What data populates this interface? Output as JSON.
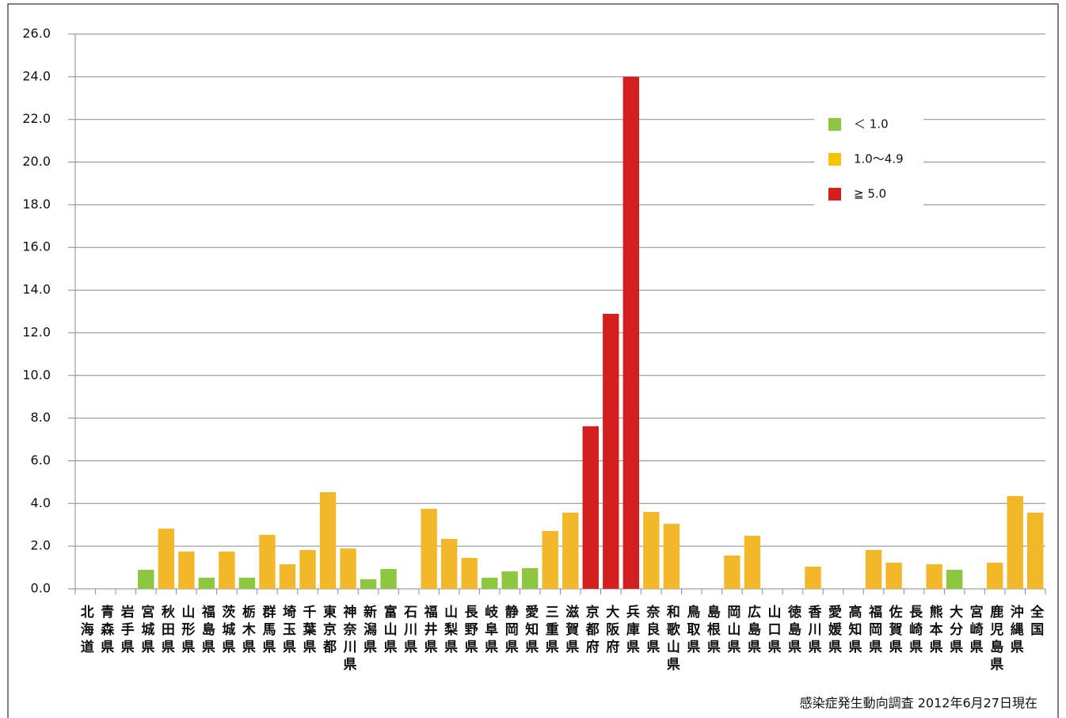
{
  "chart_data": {
    "type": "bar",
    "categories": [
      "北海道",
      "青森県",
      "岩手県",
      "宮城県",
      "秋田県",
      "山形県",
      "福島県",
      "茨城県",
      "栃木県",
      "群馬県",
      "埼玉県",
      "千葉県",
      "東京都",
      "神奈川県",
      "新潟県",
      "富山県",
      "石川県",
      "福井県",
      "山梨県",
      "長野県",
      "岐阜県",
      "静岡県",
      "愛知県",
      "三重県",
      "滋賀県",
      "京都府",
      "大阪府",
      "兵庫県",
      "奈良県",
      "和歌山県",
      "鳥取県",
      "島根県",
      "岡山県",
      "広島県",
      "山口県",
      "徳島県",
      "香川県",
      "愛媛県",
      "高知県",
      "福岡県",
      "佐賀県",
      "長崎県",
      "熊本県",
      "大分県",
      "宮崎県",
      "鹿児島県",
      "沖縄県",
      "全国"
    ],
    "values": [
      0,
      0,
      0,
      0.89,
      2.82,
      1.75,
      0.52,
      1.75,
      0.52,
      2.53,
      1.15,
      1.82,
      4.53,
      1.89,
      0.45,
      0.93,
      0,
      3.75,
      2.34,
      1.45,
      0.52,
      0.82,
      0.97,
      2.71,
      3.57,
      7.62,
      12.89,
      24.0,
      3.6,
      3.05,
      0,
      0,
      1.56,
      2.49,
      0,
      0,
      1.04,
      0,
      0,
      1.82,
      1.23,
      0,
      1.15,
      0.89,
      0,
      1.23,
      4.35,
      3.57
    ],
    "colors": [
      "#8dc63f",
      "#8dc63f",
      "#8dc63f",
      "#8dc63f",
      "#f2b82a",
      "#f2b82a",
      "#8dc63f",
      "#f2b82a",
      "#8dc63f",
      "#f2b82a",
      "#f2b82a",
      "#f2b82a",
      "#f2b82a",
      "#f2b82a",
      "#8dc63f",
      "#8dc63f",
      "#8dc63f",
      "#f2b82a",
      "#f2b82a",
      "#f2b82a",
      "#8dc63f",
      "#8dc63f",
      "#8dc63f",
      "#f2b82a",
      "#f2b82a",
      "#d41f1f",
      "#d41f1f",
      "#d41f1f",
      "#f2b82a",
      "#f2b82a",
      "#8dc63f",
      "#8dc63f",
      "#f2b82a",
      "#f2b82a",
      "#8dc63f",
      "#8dc63f",
      "#f2b82a",
      "#8dc63f",
      "#8dc63f",
      "#f2b82a",
      "#f2b82a",
      "#8dc63f",
      "#f2b82a",
      "#8dc63f",
      "#8dc63f",
      "#f2b82a",
      "#f2b82a",
      "#f2b82a"
    ],
    "legend": [
      {
        "name": "＜ 1.0",
        "color": "#8dc63f"
      },
      {
        "name": "1.0〜4.9",
        "color": "#f5c400"
      },
      {
        "name": "≧ 5.0",
        "color": "#d41f1f"
      }
    ],
    "ylim": [
      0,
      26
    ],
    "yticks": [
      {
        "value": 0,
        "label": "0.0"
      },
      {
        "value": 2,
        "label": "2.0"
      },
      {
        "value": 4,
        "label": "4.0"
      },
      {
        "value": 6,
        "label": "6.0"
      },
      {
        "value": 8,
        "label": "8.0"
      },
      {
        "value": 10,
        "label": "10.0"
      },
      {
        "value": 12,
        "label": "12.0"
      },
      {
        "value": 14,
        "label": "14.0"
      },
      {
        "value": 16,
        "label": "16.0"
      },
      {
        "value": 18,
        "label": "18.0"
      },
      {
        "value": 20,
        "label": "20.0"
      },
      {
        "value": 22,
        "label": "22.0"
      },
      {
        "value": 24,
        "label": "24.0"
      },
      {
        "value": 26,
        "label": "26.0"
      }
    ],
    "grid": true,
    "note": "感染症発生動向調査 2012年6月27日現在"
  }
}
